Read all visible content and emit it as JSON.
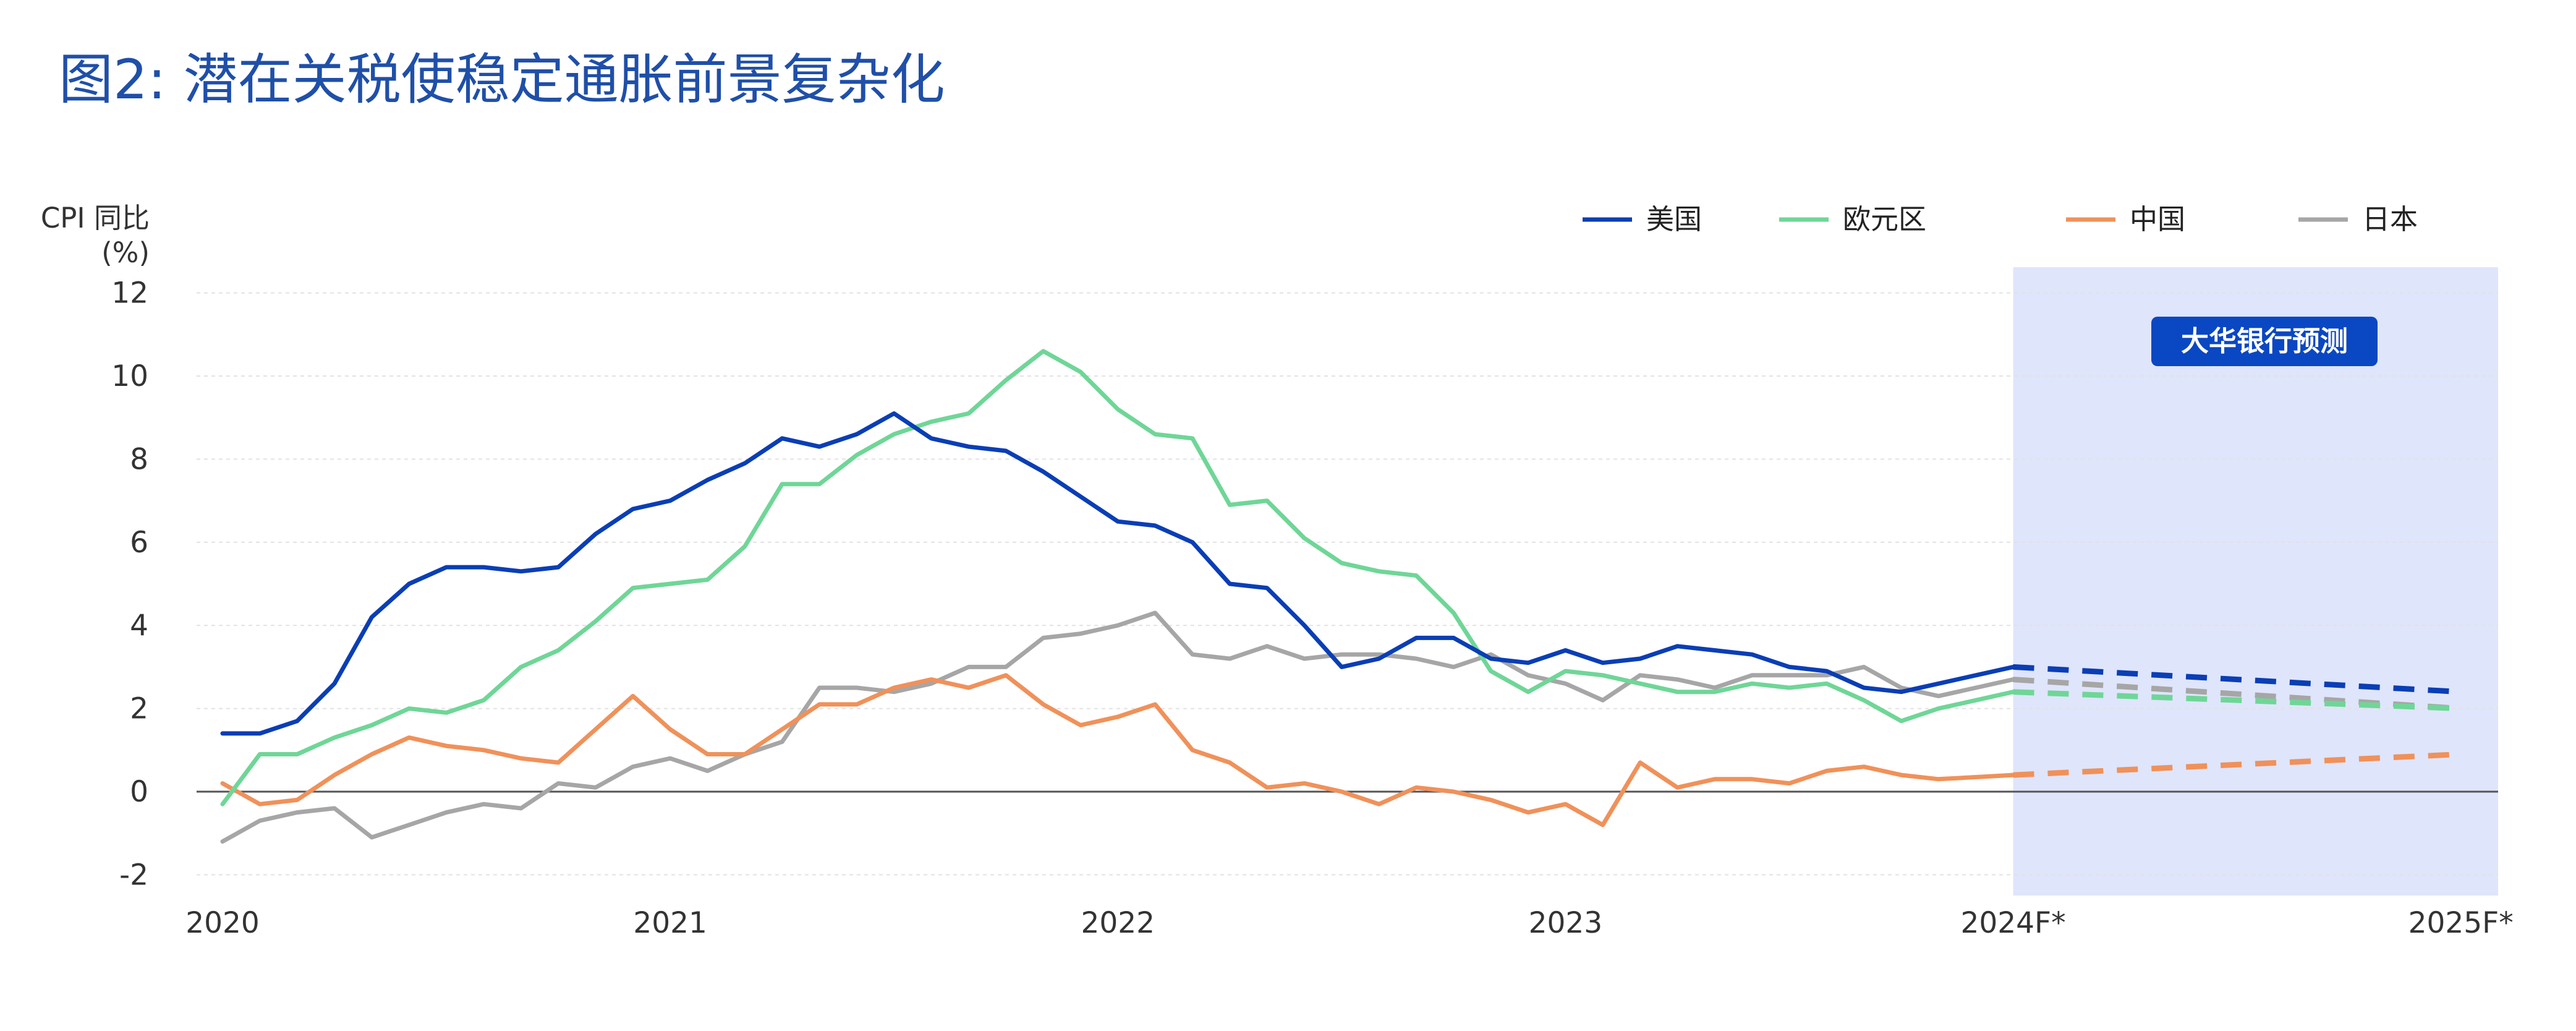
{
  "title": "图2: 潜在关税使稳定通胀前景复杂化",
  "chart_data": {
    "type": "line",
    "title": "图2: 潜在关税使稳定通胀前景复杂化",
    "ylabel_line1": "CPI 同比",
    "ylabel_line2": "(%)",
    "ylim": [
      -2.5,
      12.5
    ],
    "yticks": [
      12,
      10,
      8,
      6,
      4,
      2,
      0,
      -2
    ],
    "xlim": [
      0,
      61
    ],
    "xticks": [
      {
        "label": "2020",
        "x": 0
      },
      {
        "label": "2021",
        "x": 12
      },
      {
        "label": "2022",
        "x": 24
      },
      {
        "label": "2023",
        "x": 36
      },
      {
        "label": "2024F*",
        "x": 48
      },
      {
        "label": "2025F*",
        "x": 60
      }
    ],
    "grid": true,
    "legend_position": "top-right",
    "forecast_region": {
      "start": 48,
      "end": 61,
      "label": "大华银行预测",
      "color": "#dfe5fb"
    },
    "badge_color": "#0a47c2",
    "series": [
      {
        "name": "美国",
        "color": "#0a3eb5",
        "values": [
          1.4,
          1.4,
          1.7,
          2.6,
          4.2,
          5.0,
          5.4,
          5.4,
          5.3,
          5.4,
          6.2,
          6.8,
          7.0,
          7.5,
          7.9,
          8.5,
          8.3,
          8.6,
          9.1,
          8.5,
          8.3,
          8.2,
          7.7,
          7.1,
          6.5,
          6.4,
          6.0,
          5.0,
          4.9,
          4.0,
          3.0,
          3.2,
          3.7,
          3.7,
          3.2,
          3.1,
          3.4,
          3.1,
          3.2,
          3.5,
          3.4,
          3.3,
          3.0,
          2.9,
          2.5,
          2.4,
          2.6,
          2.8,
          3.0
        ],
        "forecast": [
          [
            48,
            3.0
          ],
          [
            60,
            2.4
          ]
        ]
      },
      {
        "name": "欧元区",
        "color": "#6fd697",
        "values": [
          -0.3,
          0.9,
          0.9,
          1.3,
          1.6,
          2.0,
          1.9,
          2.2,
          3.0,
          3.4,
          4.1,
          4.9,
          5.0,
          5.1,
          5.9,
          7.4,
          7.4,
          8.1,
          8.6,
          8.9,
          9.1,
          9.9,
          10.6,
          10.1,
          9.2,
          8.6,
          8.5,
          6.9,
          7.0,
          6.1,
          5.5,
          5.3,
          5.2,
          4.3,
          2.9,
          2.4,
          2.9,
          2.8,
          2.6,
          2.4,
          2.4,
          2.6,
          2.5,
          2.6,
          2.2,
          1.7,
          2.0,
          2.2,
          2.4
        ],
        "forecast": [
          [
            48,
            2.4
          ],
          [
            60,
            2.0
          ]
        ]
      },
      {
        "name": "中国",
        "color": "#f0915a",
        "values": [
          0.2,
          -0.3,
          -0.2,
          0.4,
          0.9,
          1.3,
          1.1,
          1.0,
          0.8,
          0.7,
          1.5,
          2.3,
          1.5,
          0.9,
          0.9,
          1.5,
          2.1,
          2.1,
          2.5,
          2.7,
          2.5,
          2.8,
          2.1,
          1.6,
          1.8,
          2.1,
          1.0,
          0.7,
          0.1,
          0.2,
          0.0,
          -0.3,
          0.1,
          0.0,
          -0.2,
          -0.5,
          -0.3,
          -0.8,
          0.7,
          0.1,
          0.3,
          0.3,
          0.2,
          0.5,
          0.6,
          0.4,
          0.3,
          0.35,
          0.4
        ],
        "forecast": [
          [
            48,
            0.4
          ],
          [
            60,
            0.9
          ]
        ]
      },
      {
        "name": "日本",
        "color": "#a6a6a6",
        "values": [
          -1.2,
          -0.7,
          -0.5,
          -0.4,
          -1.1,
          -0.8,
          -0.5,
          -0.3,
          -0.4,
          0.2,
          0.1,
          0.6,
          0.8,
          0.5,
          0.9,
          1.2,
          2.5,
          2.5,
          2.4,
          2.6,
          3.0,
          3.0,
          3.7,
          3.8,
          4.0,
          4.3,
          3.3,
          3.2,
          3.5,
          3.2,
          3.3,
          3.3,
          3.2,
          3.0,
          3.3,
          2.8,
          2.6,
          2.2,
          2.8,
          2.7,
          2.5,
          2.8,
          2.8,
          2.8,
          3.0,
          2.5,
          2.3,
          2.5,
          2.7
        ],
        "forecast": [
          [
            48,
            2.7
          ],
          [
            60,
            2.0
          ]
        ]
      }
    ]
  }
}
